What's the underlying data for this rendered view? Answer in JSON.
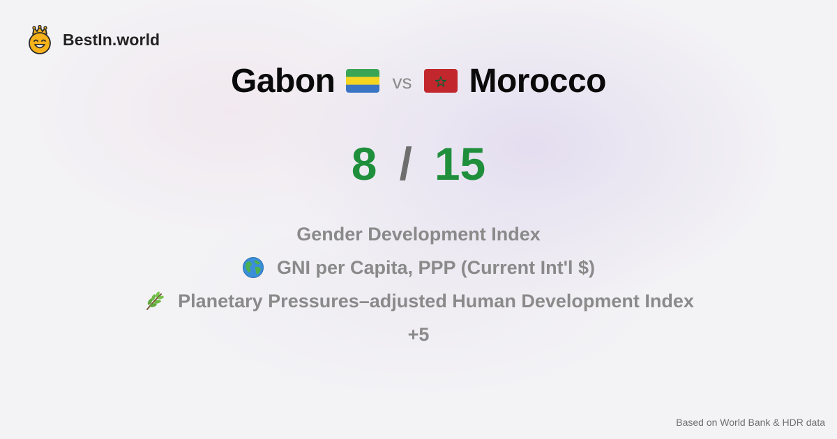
{
  "brand": {
    "name": "BestIn.world",
    "logo_icon": "crowned-smiley-icon"
  },
  "title": {
    "country_a": "Gabon",
    "flag_a": "gabon-flag-icon",
    "vs": "vs",
    "flag_b": "morocco-flag-icon",
    "country_b": "Morocco"
  },
  "score": {
    "a": "8",
    "separator": "/",
    "b": "15"
  },
  "metrics": [
    {
      "label": "Gender Development Index",
      "icon": ""
    },
    {
      "label": "GNI per Capita, PPP (Current Int'l $)",
      "icon": "globe-icon"
    },
    {
      "label": "Planetary Pressures–adjusted Human Development Index",
      "icon": "herb-icon"
    },
    {
      "label": "+5",
      "icon": ""
    }
  ],
  "footer": {
    "source": "Based on World Bank & HDR data"
  },
  "colors": {
    "score_green": "#1f8f3c",
    "muted_text": "#8a8a8a",
    "background": "#f3f2f5",
    "gabon_green": "#3aa655",
    "gabon_yellow": "#f5d51f",
    "gabon_blue": "#3a75c4",
    "morocco_red": "#c1272d",
    "morocco_star": "#006233"
  }
}
